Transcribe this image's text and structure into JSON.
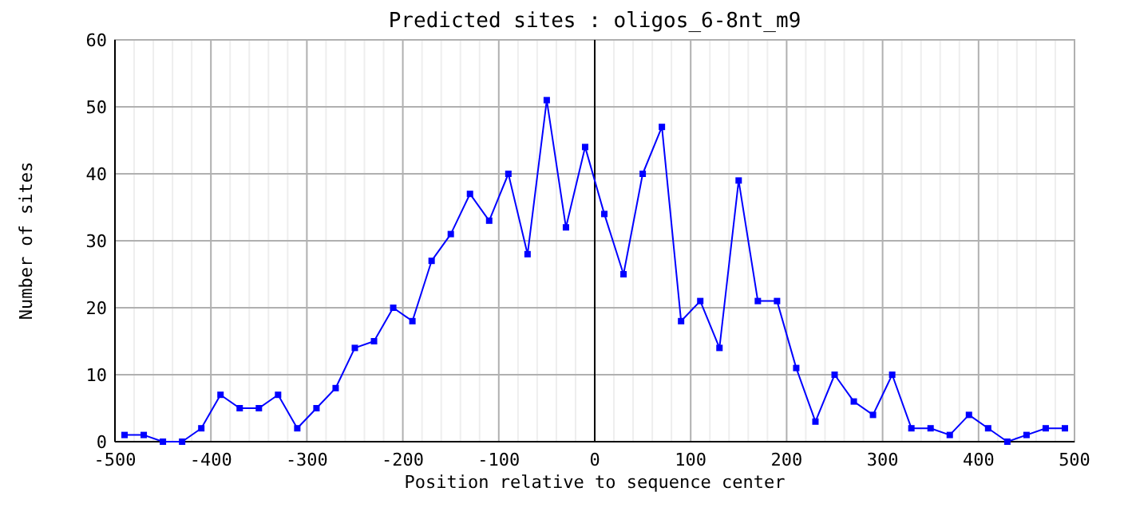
{
  "chart_data": {
    "type": "line",
    "title": "Predicted sites : oligos_6-8nt_m9",
    "xlabel": "Position relative to sequence center",
    "ylabel": "Number of sites",
    "x": [
      -490,
      -470,
      -450,
      -430,
      -410,
      -390,
      -370,
      -350,
      -330,
      -310,
      -290,
      -270,
      -250,
      -230,
      -210,
      -190,
      -170,
      -150,
      -130,
      -110,
      -90,
      -70,
      -50,
      -30,
      -10,
      10,
      30,
      50,
      70,
      90,
      110,
      130,
      150,
      170,
      190,
      210,
      230,
      250,
      270,
      290,
      310,
      330,
      350,
      370,
      390,
      410,
      430,
      450,
      470,
      490
    ],
    "series": [
      {
        "color": "#0000ff",
        "values": [
          1,
          1,
          0,
          0,
          2,
          7,
          5,
          5,
          7,
          2,
          5,
          8,
          14,
          15,
          20,
          18,
          27,
          31,
          37,
          33,
          40,
          28,
          51,
          32,
          44,
          34,
          25,
          40,
          47,
          18,
          21,
          14,
          39,
          21,
          21,
          11,
          3,
          10,
          6,
          4,
          10,
          2,
          2,
          1,
          4,
          2,
          0,
          1,
          2,
          2
        ]
      }
    ],
    "xlim": [
      -500,
      500
    ],
    "xticks": [
      -500,
      {
        "value": -480,
        "label": null
      },
      {
        "value": -460,
        "label": null
      },
      {
        "value": -440,
        "label": null
      },
      {
        "value": -420,
        "label": null
      },
      -400,
      {
        "value": -380,
        "label": null
      },
      {
        "value": -360,
        "label": null
      },
      {
        "value": -340,
        "label": null
      },
      {
        "value": -320,
        "label": null
      },
      -300,
      {
        "value": -280,
        "label": null
      },
      {
        "value": -260,
        "label": null
      },
      {
        "value": -240,
        "label": null
      },
      {
        "value": -220,
        "label": null
      },
      -200,
      {
        "value": -180,
        "label": null
      },
      {
        "value": -160,
        "label": null
      },
      {
        "value": -140,
        "label": null
      },
      {
        "value": -120,
        "label": null
      },
      -100,
      {
        "value": -80,
        "label": null
      },
      {
        "value": -60,
        "label": null
      },
      {
        "value": -40,
        "label": null
      },
      {
        "value": -20,
        "label": null
      },
      0,
      {
        "value": 20,
        "label": null
      },
      {
        "value": 40,
        "label": null
      },
      {
        "value": 60,
        "label": null
      },
      {
        "value": 80,
        "label": null
      },
      100,
      {
        "value": 120,
        "label": null
      },
      {
        "value": 140,
        "label": null
      },
      {
        "value": 160,
        "label": null
      },
      {
        "value": 180,
        "label": null
      },
      200,
      {
        "value": 220,
        "label": null
      },
      {
        "value": 240,
        "label": null
      },
      {
        "value": 260,
        "label": null
      },
      {
        "value": 280,
        "label": null
      },
      300,
      {
        "value": 320,
        "label": null
      },
      {
        "value": 340,
        "label": null
      },
      {
        "value": 360,
        "label": null
      },
      {
        "value": 380,
        "label": null
      },
      400,
      {
        "value": 420,
        "label": null
      },
      {
        "value": 440,
        "label": null
      },
      {
        "value": 460,
        "label": null
      },
      {
        "value": 480,
        "label": null
      },
      500
    ],
    "ylim": [
      0,
      60
    ],
    "yticks": [
      0,
      10,
      20,
      30,
      40,
      50,
      60
    ],
    "ref_lines": [
      {
        "axis": "x",
        "value": 0,
        "color": "#000000"
      }
    ],
    "grid": true,
    "marker": "square",
    "line_style": "solid"
  }
}
